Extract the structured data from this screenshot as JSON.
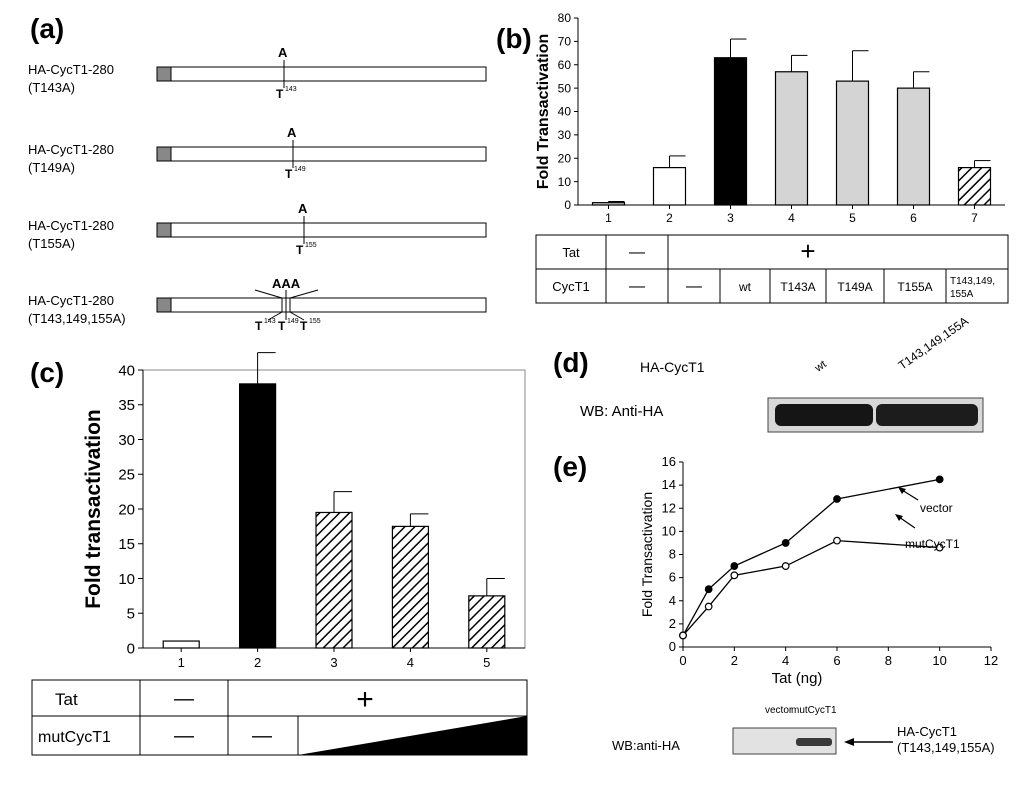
{
  "panels": {
    "a": "(a)",
    "b": "(b)",
    "c": "(c)",
    "d": "(d)",
    "e": "(e)"
  },
  "colors": {
    "fill_white": "#ffffff",
    "fill_black": "#000000",
    "fill_gray": "#d4d4d4",
    "tag_gray": "#888888"
  },
  "panel_a": {
    "constructs": [
      {
        "name": "HA-CycT1-280",
        "mutation": "(T143A)",
        "top_labels": [
          "A"
        ],
        "bottom_labels": [
          "T",
          "143"
        ]
      },
      {
        "name": "HA-CycT1-280",
        "mutation": "(T149A)",
        "top_labels": [
          "A"
        ],
        "bottom_labels": [
          "T",
          "149"
        ]
      },
      {
        "name": "HA-CycT1-280",
        "mutation": "(T155A)",
        "top_labels": [
          "A"
        ],
        "bottom_labels": [
          "T",
          "155"
        ]
      },
      {
        "name": "HA-CycT1-280",
        "mutation": "(T143,149,155A)",
        "top_labels": [
          "AAA"
        ],
        "bottom_labels": [
          "T",
          "143",
          "T",
          "149",
          "T",
          "155"
        ]
      }
    ]
  },
  "chart_data": [
    {
      "id": "b",
      "type": "bar",
      "categories": [
        "1",
        "2",
        "3",
        "4",
        "5",
        "6",
        "7"
      ],
      "values": [
        1,
        16,
        63,
        57,
        53,
        50,
        16
      ],
      "errors": [
        0.5,
        5,
        8,
        7,
        13,
        7,
        3
      ],
      "fills": [
        "gray",
        "white",
        "black",
        "gray",
        "gray",
        "gray",
        "hatch"
      ],
      "ylabel": "Fold Transactivation",
      "ylim": [
        0,
        80
      ],
      "yticks": [
        "0",
        "10",
        "20",
        "30",
        "40",
        "50",
        "60",
        "70",
        "80"
      ],
      "table": {
        "tat_label": "Tat",
        "tat_minus": "—",
        "tat_plus": "+",
        "cyc_label": "CycT1",
        "cyc_cells": [
          "—",
          "—",
          "wt",
          "T143A",
          "T149A",
          "T155A",
          "T143,149,",
          "155A"
        ]
      }
    },
    {
      "id": "c",
      "type": "bar",
      "categories": [
        "1",
        "2",
        "3",
        "4",
        "5"
      ],
      "values": [
        1,
        38,
        19.5,
        17.5,
        7.5
      ],
      "errors": [
        0,
        4.5,
        3,
        1.8,
        2.5
      ],
      "fills": [
        "white",
        "black",
        "hatch",
        "hatch",
        "hatch"
      ],
      "ylabel": "Fold transactivation",
      "ylim": [
        0,
        40
      ],
      "yticks": [
        "0",
        "5",
        "10",
        "15",
        "20",
        "25",
        "30",
        "35",
        "40"
      ],
      "table": {
        "tat_label": "Tat",
        "tat_minus": "—",
        "tat_plus": "+",
        "mut_label": "mutCycT1",
        "mut_cells": [
          "—",
          "—"
        ]
      }
    },
    {
      "id": "e",
      "type": "line",
      "x": [
        0,
        1,
        2,
        4,
        6,
        10
      ],
      "series": [
        {
          "name": "vector",
          "values": [
            1,
            5,
            7,
            9,
            12.8,
            14.5
          ]
        },
        {
          "name": "mutCycT1",
          "values": [
            1,
            3.5,
            6.2,
            7,
            9.2,
            8.6
          ]
        }
      ],
      "xlabel": "Tat (ng)",
      "ylabel": "Fold Transactivation",
      "xlim": [
        0,
        12
      ],
      "ylim": [
        0,
        16
      ],
      "xticks": [
        "0",
        "2",
        "4",
        "6",
        "8",
        "10",
        "12"
      ],
      "yticks": [
        "0",
        "2",
        "4",
        "6",
        "8",
        "10",
        "12",
        "14",
        "16"
      ]
    }
  ],
  "panel_d": {
    "label": "HA-CycT1",
    "lane1": "wt",
    "lane2": "T143,149,155A",
    "wb": "WB: Anti-HA"
  },
  "panel_e_blot": {
    "lane1": "vector",
    "lane2": "mutCycT1",
    "wb": "WB:anti-HA",
    "band_label_1": "HA-CycT1",
    "band_label_2": "(T143,149,155A)"
  }
}
